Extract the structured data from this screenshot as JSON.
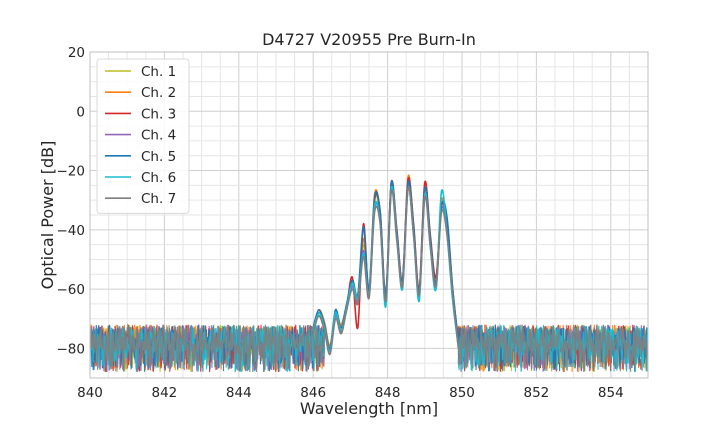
{
  "chart_data": {
    "type": "line",
    "title": "D4727 V20955 Pre Burn-In",
    "xlabel": "Wavelength [nm]",
    "ylabel": "Optical Power [dB]",
    "xlim": [
      840,
      855
    ],
    "ylim": [
      -90,
      20
    ],
    "xticks": [
      840,
      842,
      844,
      846,
      848,
      850,
      852,
      854
    ],
    "xtick_labels": [
      "840",
      "842",
      "844",
      "846",
      "848",
      "850",
      "852",
      "854"
    ],
    "yticks": [
      20,
      0,
      -20,
      -40,
      -60,
      -80
    ],
    "ytick_labels": [
      "20",
      "0",
      "−20",
      "−40",
      "−60",
      "−80"
    ],
    "grid": true,
    "legend_position": "top-left",
    "noise_floor": {
      "x_ranges": [
        [
          840,
          846.3
        ],
        [
          849.9,
          855
        ]
      ],
      "y_range": [
        -90,
        -72
      ]
    },
    "series": [
      {
        "name": "Ch. 1",
        "color": "#bcbd22",
        "x": [
          846.0,
          846.15,
          846.3,
          846.45,
          846.6,
          846.75,
          846.9,
          847.05,
          847.2,
          847.35,
          847.5,
          847.65,
          847.8,
          847.95,
          848.1,
          848.25,
          848.4,
          848.55,
          848.7,
          848.85,
          849.0,
          849.15,
          849.3,
          849.45,
          849.6,
          849.75,
          849.9
        ],
        "y": [
          -74,
          -68,
          -72,
          -80,
          -69,
          -74,
          -66,
          -58,
          -63,
          -45,
          -62,
          -30,
          -36,
          -64,
          -25,
          -42,
          -58,
          -23,
          -40,
          -62,
          -26,
          -44,
          -58,
          -31,
          -40,
          -62,
          -78
        ]
      },
      {
        "name": "Ch. 2",
        "color": "#ff7f0e",
        "x": [
          846.0,
          846.15,
          846.3,
          846.45,
          846.6,
          846.75,
          846.9,
          847.05,
          847.2,
          847.35,
          847.5,
          847.65,
          847.8,
          847.95,
          848.1,
          848.25,
          848.4,
          848.55,
          848.7,
          848.85,
          849.0,
          849.15,
          849.3,
          849.45,
          849.6,
          849.75,
          849.9
        ],
        "y": [
          -73,
          -67,
          -71,
          -79,
          -68,
          -72,
          -65,
          -57,
          -62,
          -43,
          -61,
          -28,
          -35,
          -63,
          -24,
          -41,
          -57,
          -22,
          -39,
          -61,
          -25,
          -43,
          -57,
          -30,
          -39,
          -61,
          -77
        ]
      },
      {
        "name": "Ch. 3",
        "color": "#d62728",
        "x": [
          846.0,
          846.15,
          846.3,
          846.45,
          846.6,
          846.75,
          846.9,
          847.05,
          847.2,
          847.35,
          847.5,
          847.65,
          847.8,
          847.95,
          848.1,
          848.25,
          848.4,
          848.55,
          848.7,
          848.85,
          849.0,
          849.15,
          849.3,
          849.45,
          849.6,
          849.75,
          849.9
        ],
        "y": [
          -75,
          -68,
          -72,
          -81,
          -68,
          -75,
          -66,
          -56,
          -73,
          -38,
          -62,
          -30,
          -34,
          -62,
          -24,
          -40,
          -57,
          -23,
          -38,
          -60,
          -24,
          -42,
          -56,
          -32,
          -38,
          -60,
          -78
        ]
      },
      {
        "name": "Ch. 4",
        "color": "#9467bd",
        "x": [
          846.0,
          846.15,
          846.3,
          846.45,
          846.6,
          846.75,
          846.9,
          847.05,
          847.2,
          847.35,
          847.5,
          847.65,
          847.8,
          847.95,
          848.1,
          848.25,
          848.4,
          848.55,
          848.7,
          848.85,
          849.0,
          849.15,
          849.3,
          849.45,
          849.6,
          849.75,
          849.9
        ],
        "y": [
          -74,
          -69,
          -73,
          -80,
          -69,
          -74,
          -67,
          -59,
          -64,
          -47,
          -63,
          -33,
          -37,
          -65,
          -26,
          -43,
          -59,
          -25,
          -41,
          -63,
          -28,
          -45,
          -60,
          -33,
          -41,
          -63,
          -79
        ]
      },
      {
        "name": "Ch. 5",
        "color": "#1f77b4",
        "x": [
          846.0,
          846.15,
          846.3,
          846.45,
          846.6,
          846.75,
          846.9,
          847.05,
          847.2,
          847.35,
          847.5,
          847.65,
          847.8,
          847.95,
          848.1,
          848.25,
          848.4,
          848.55,
          848.7,
          848.85,
          849.0,
          849.15,
          849.3,
          849.45,
          849.6,
          849.75,
          849.9
        ],
        "y": [
          -73,
          -67,
          -72,
          -80,
          -67,
          -73,
          -65,
          -57,
          -62,
          -39,
          -60,
          -29,
          -34,
          -62,
          -24,
          -41,
          -57,
          -24,
          -39,
          -61,
          -26,
          -43,
          -58,
          -32,
          -36,
          -60,
          -77
        ]
      },
      {
        "name": "Ch. 6",
        "color": "#17becf",
        "x": [
          846.0,
          846.15,
          846.3,
          846.45,
          846.6,
          846.75,
          846.9,
          847.05,
          847.2,
          847.35,
          847.5,
          847.65,
          847.8,
          847.95,
          848.1,
          848.25,
          848.4,
          848.55,
          848.7,
          848.85,
          849.0,
          849.15,
          849.3,
          849.45,
          849.6,
          849.75,
          849.9
        ],
        "y": [
          -74,
          -68,
          -73,
          -81,
          -68,
          -74,
          -66,
          -58,
          -63,
          -48,
          -62,
          -32,
          -38,
          -66,
          -26,
          -43,
          -60,
          -26,
          -42,
          -64,
          -28,
          -46,
          -60,
          -27,
          -42,
          -64,
          -79
        ]
      },
      {
        "name": "Ch. 7",
        "color": "#7f7f7f",
        "x": [
          846.0,
          846.15,
          846.3,
          846.45,
          846.6,
          846.75,
          846.9,
          847.05,
          847.2,
          847.35,
          847.5,
          847.65,
          847.8,
          847.95,
          848.1,
          848.25,
          848.4,
          848.55,
          848.7,
          848.85,
          849.0,
          849.15,
          849.3,
          849.45,
          849.6,
          849.75,
          849.9
        ],
        "y": [
          -75,
          -69,
          -74,
          -82,
          -70,
          -75,
          -67,
          -60,
          -65,
          -49,
          -63,
          -34,
          -38,
          -64,
          -27,
          -44,
          -59,
          -26,
          -42,
          -62,
          -29,
          -46,
          -59,
          -34,
          -42,
          -62,
          -80
        ]
      }
    ]
  }
}
